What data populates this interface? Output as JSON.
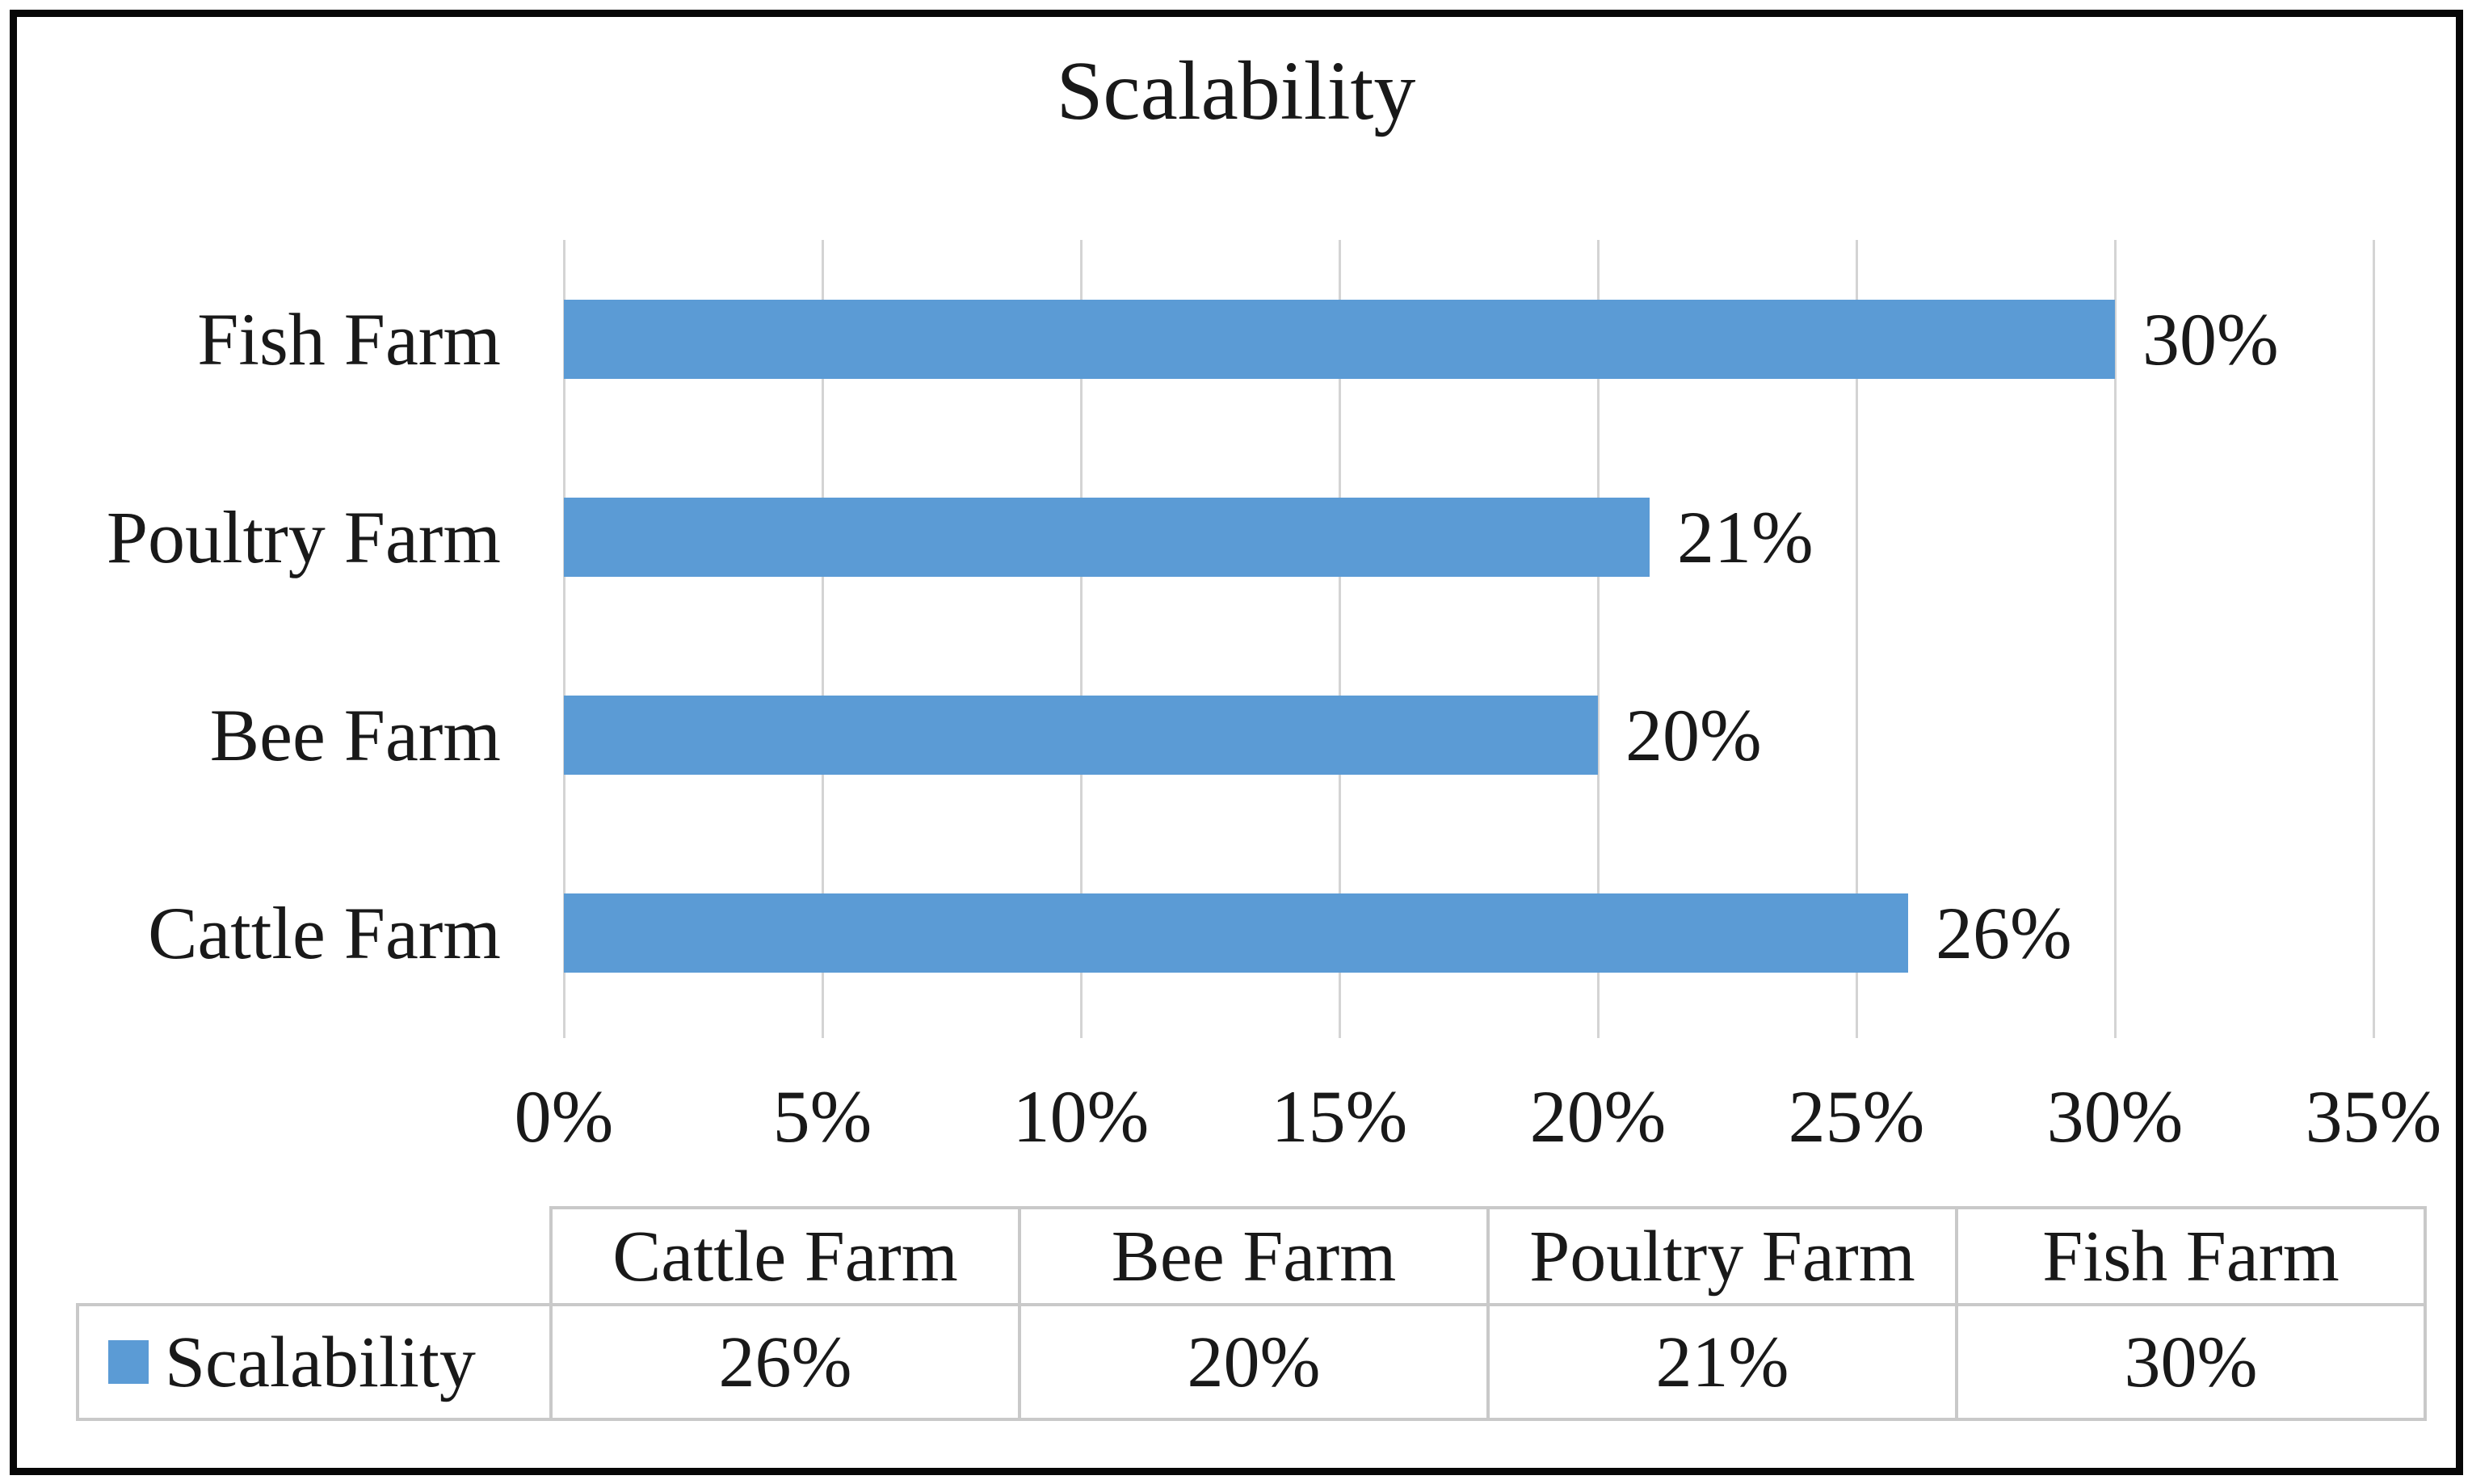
{
  "chart_data": {
    "type": "bar",
    "orientation": "horizontal",
    "title": "Scalability",
    "series_name": "Scalability",
    "categories": [
      "Fish Farm",
      "Poultry Farm",
      "Bee Farm",
      "Cattle Farm"
    ],
    "values": [
      30,
      21,
      20,
      26
    ],
    "data_labels": [
      "30%",
      "21%",
      "20%",
      "26%"
    ],
    "x_axis": {
      "min": 0,
      "max": 35,
      "tick_values": [
        0,
        5,
        10,
        15,
        20,
        25,
        30,
        35
      ],
      "tick_labels": [
        "0%",
        "5%",
        "10%",
        "15%",
        "20%",
        "25%",
        "30%",
        "35%"
      ]
    },
    "grid": true,
    "legend_position": "bottom-table",
    "bar_color": "#5B9BD5"
  },
  "data_table": {
    "columns": [
      "Cattle Farm",
      "Bee Farm",
      "Poultry Farm",
      "Fish Farm"
    ],
    "legend": {
      "label": "Scalability",
      "key_color": "#5B9BD5"
    },
    "values": [
      "26%",
      "20%",
      "21%",
      "30%"
    ]
  }
}
